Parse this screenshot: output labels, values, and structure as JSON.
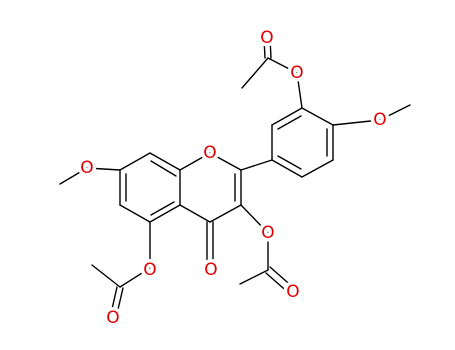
{
  "atoms": [
    {
      "label": "O"
    },
    {
      "label": "O"
    },
    {
      "label": "O"
    },
    {
      "label": "O"
    },
    {
      "label": "O"
    },
    {
      "label": "O"
    },
    {
      "label": "O"
    },
    {
      "label": "O"
    },
    {
      "label": "O"
    },
    {
      "label": "O"
    }
  ]
}
